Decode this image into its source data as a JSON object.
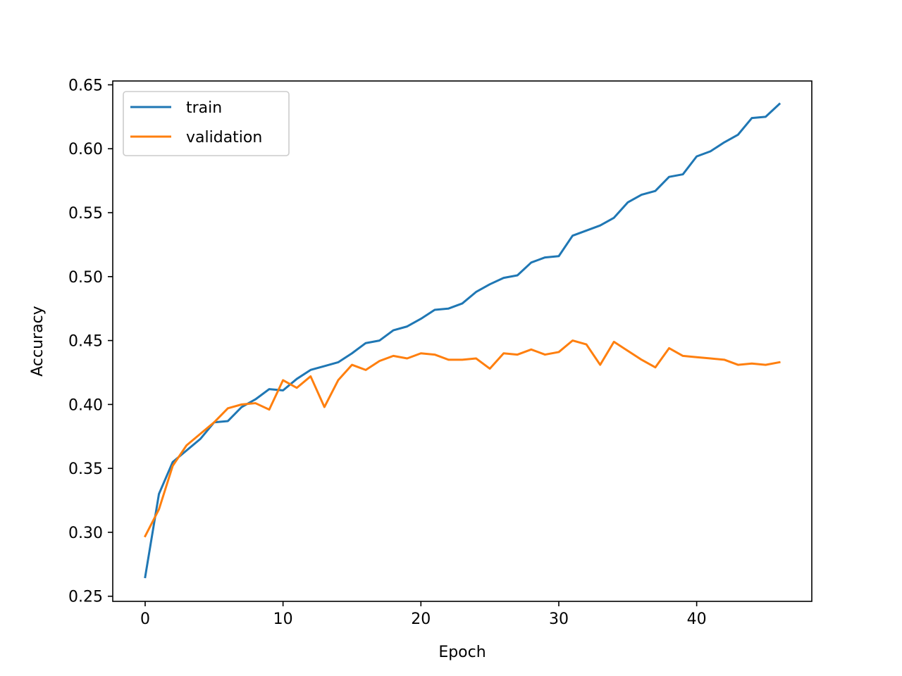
{
  "chart_data": {
    "type": "line",
    "title": "",
    "xlabel": "Epoch",
    "ylabel": "Accuracy",
    "xlim": [
      -2.35,
      48.35
    ],
    "ylim": [
      0.246,
      0.653
    ],
    "xticks": [
      0,
      10,
      20,
      30,
      40
    ],
    "xtick_labels": [
      "0",
      "10",
      "20",
      "30",
      "40"
    ],
    "yticks": [
      0.25,
      0.3,
      0.35,
      0.4,
      0.45,
      0.5,
      0.55,
      0.6,
      0.65
    ],
    "ytick_labels": [
      "0.25",
      "0.30",
      "0.35",
      "0.40",
      "0.45",
      "0.50",
      "0.55",
      "0.60",
      "0.65"
    ],
    "grid": false,
    "legend_position": "upper-left",
    "x": [
      0,
      1,
      2,
      3,
      4,
      5,
      6,
      7,
      8,
      9,
      10,
      11,
      12,
      13,
      14,
      15,
      16,
      17,
      18,
      19,
      20,
      21,
      22,
      23,
      24,
      25,
      26,
      27,
      28,
      29,
      30,
      31,
      32,
      33,
      34,
      35,
      36,
      37,
      38,
      39,
      40,
      41,
      42,
      43,
      44,
      45,
      46
    ],
    "series": [
      {
        "name": "train",
        "color": "#1f77b4",
        "values": [
          0.265,
          0.33,
          0.355,
          0.364,
          0.373,
          0.386,
          0.387,
          0.398,
          0.404,
          0.412,
          0.411,
          0.42,
          0.427,
          0.43,
          0.433,
          0.44,
          0.448,
          0.45,
          0.458,
          0.461,
          0.467,
          0.474,
          0.475,
          0.479,
          0.488,
          0.494,
          0.499,
          0.501,
          0.511,
          0.515,
          0.516,
          0.532,
          0.536,
          0.54,
          0.546,
          0.558,
          0.564,
          0.567,
          0.578,
          0.58,
          0.594,
          0.598,
          0.605,
          0.611,
          0.624,
          0.625,
          0.635
        ]
      },
      {
        "name": "validation",
        "color": "#ff7f0e",
        "values": [
          0.297,
          0.318,
          0.352,
          0.368,
          0.377,
          0.386,
          0.397,
          0.4,
          0.401,
          0.396,
          0.419,
          0.413,
          0.422,
          0.398,
          0.419,
          0.431,
          0.427,
          0.434,
          0.438,
          0.436,
          0.44,
          0.439,
          0.435,
          0.435,
          0.436,
          0.428,
          0.44,
          0.439,
          0.443,
          0.439,
          0.441,
          0.45,
          0.447,
          0.431,
          0.449,
          0.442,
          0.435,
          0.429,
          0.444,
          0.438,
          0.437,
          0.436,
          0.435,
          0.431,
          0.432,
          0.431,
          0.433
        ]
      }
    ]
  }
}
